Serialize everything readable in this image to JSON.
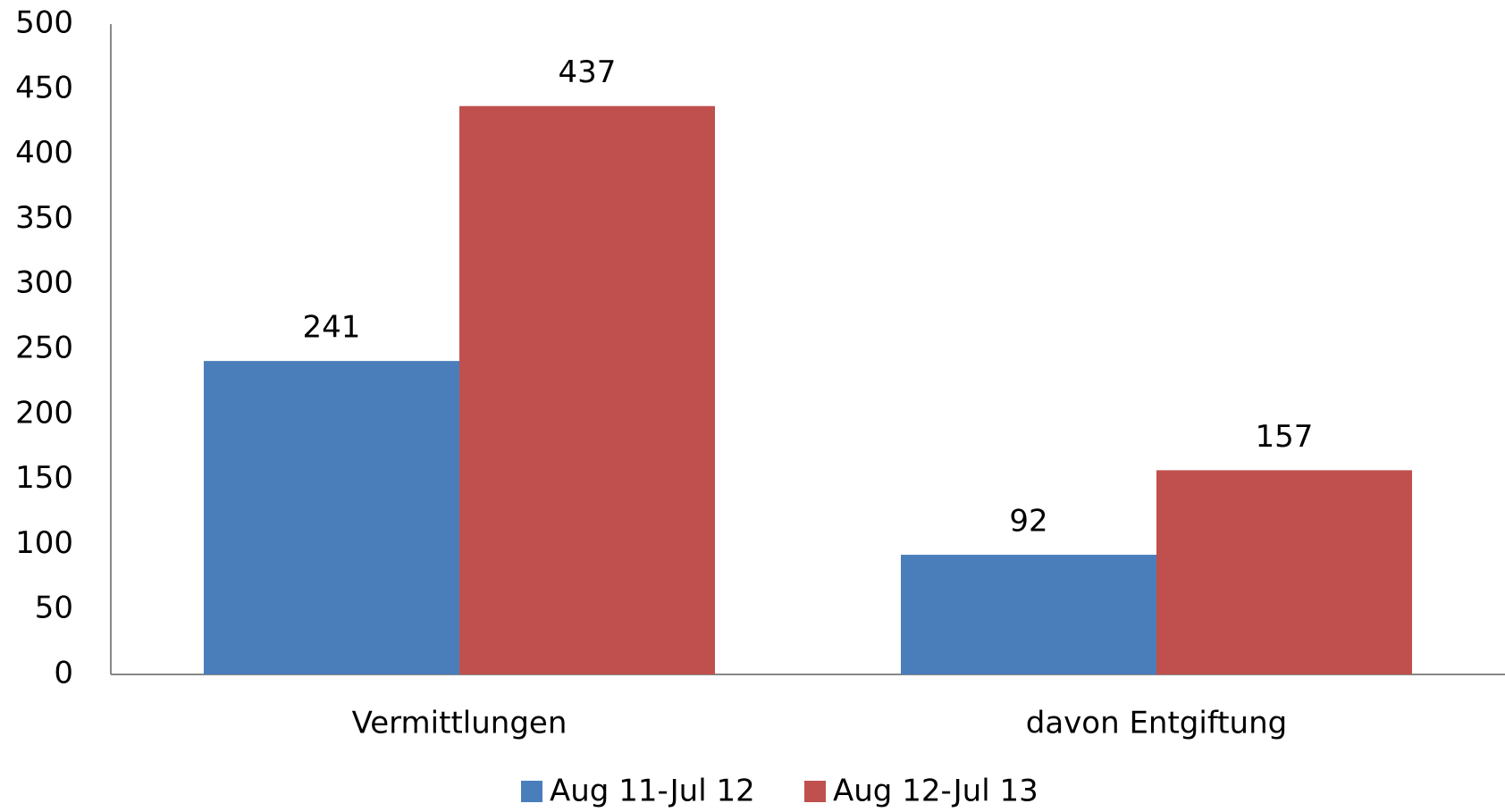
{
  "chart_data": {
    "type": "bar",
    "categories": [
      "Vermittlungen",
      "davon Entgiftung"
    ],
    "series": [
      {
        "name": "Aug 11-Jul 12",
        "color": "#4a7ebb",
        "values": [
          241,
          92
        ]
      },
      {
        "name": "Aug 12-Jul 13",
        "color": "#c0504d",
        "values": [
          437,
          157
        ]
      }
    ],
    "ylim": [
      0,
      500
    ],
    "yticks": [
      0,
      50,
      100,
      150,
      200,
      250,
      300,
      350,
      400,
      450,
      500
    ],
    "grid": false,
    "legend": "bottom"
  }
}
